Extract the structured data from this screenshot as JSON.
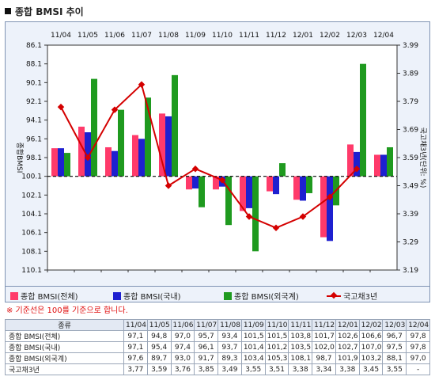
{
  "title": "종합 BMSI 추이",
  "chart_data": {
    "type": "bar",
    "categories": [
      "11/04",
      "11/05",
      "11/06",
      "11/07",
      "11/08",
      "11/09",
      "11/10",
      "11/11",
      "11/12",
      "12/01",
      "12/02",
      "12/03",
      "12/04"
    ],
    "baseline": 100.1,
    "y_ticks": [
      "86.1",
      "88.1",
      "90.1",
      "92.1",
      "94.1",
      "96.1",
      "98.1",
      "100.1",
      "102.1",
      "104.1",
      "106.1",
      "108.1",
      "110.1"
    ],
    "y_range": [
      86.1,
      110.1
    ],
    "ylabel": "종합BMSI",
    "y2label": "국고채3년(단위: %)",
    "y2_ticks": [
      "3.99",
      "3.89",
      "3.79",
      "3.69",
      "3.59",
      "3.49",
      "3.39",
      "3.29",
      "3.19"
    ],
    "y2_range": [
      3.19,
      3.99
    ],
    "series": [
      {
        "name": "종합 BMSI(전체)",
        "type": "bar",
        "color": "#ff3a6a",
        "values": [
          97.1,
          94.8,
          97.0,
          95.7,
          93.4,
          101.5,
          101.5,
          103.8,
          101.7,
          102.6,
          106.6,
          96.7,
          97.8
        ]
      },
      {
        "name": "종합 BMSI(국내)",
        "type": "bar",
        "color": "#1e20d0",
        "values": [
          97.1,
          95.4,
          97.4,
          96.1,
          93.7,
          101.4,
          101.2,
          103.5,
          102.0,
          102.7,
          107.0,
          97.5,
          97.8
        ]
      },
      {
        "name": "종합 BMSI(외국계)",
        "type": "bar",
        "color": "#1f9a1f",
        "values": [
          97.6,
          89.7,
          93.0,
          91.7,
          89.3,
          103.4,
          105.3,
          108.1,
          98.7,
          101.9,
          103.2,
          88.1,
          97.0
        ]
      },
      {
        "name": "국고채3년",
        "type": "line",
        "color": "#d40000",
        "values": [
          3.77,
          3.59,
          3.76,
          3.85,
          3.49,
          3.55,
          3.51,
          3.38,
          3.34,
          3.38,
          3.45,
          3.55,
          null
        ]
      }
    ],
    "grid": false,
    "legend_position": "bottom"
  },
  "note": "※ 기준선은 100를 기준으로 합니다.",
  "table": {
    "header_label": "종류",
    "columns": [
      "11/04",
      "11/05",
      "11/06",
      "11/07",
      "11/08",
      "11/09",
      "11/10",
      "11/11",
      "11/12",
      "12/01",
      "12/02",
      "12/03",
      "12/04"
    ],
    "rows": [
      {
        "label": "종합 BMSI(전체)",
        "values": [
          "97,1",
          "94,8",
          "97,0",
          "95,7",
          "93,4",
          "101,5",
          "101,5",
          "103,8",
          "101,7",
          "102,6",
          "106,6",
          "96,7",
          "97,8"
        ]
      },
      {
        "label": "종합 BMSI(국내)",
        "values": [
          "97,1",
          "95,4",
          "97,4",
          "96,1",
          "93,7",
          "101,4",
          "101,2",
          "103,5",
          "102,0",
          "102,7",
          "107,0",
          "97,5",
          "97,8"
        ]
      },
      {
        "label": "종합 BMSI(외국계)",
        "values": [
          "97,6",
          "89,7",
          "93,0",
          "91,7",
          "89,3",
          "103,4",
          "105,3",
          "108,1",
          "98,7",
          "101,9",
          "103,2",
          "88,1",
          "97,0"
        ]
      },
      {
        "label": "국고채3년",
        "values": [
          "3,77",
          "3,59",
          "3,76",
          "3,85",
          "3,49",
          "3,55",
          "3,51",
          "3,38",
          "3,34",
          "3,38",
          "3,45",
          "3,55",
          "-"
        ]
      }
    ]
  }
}
